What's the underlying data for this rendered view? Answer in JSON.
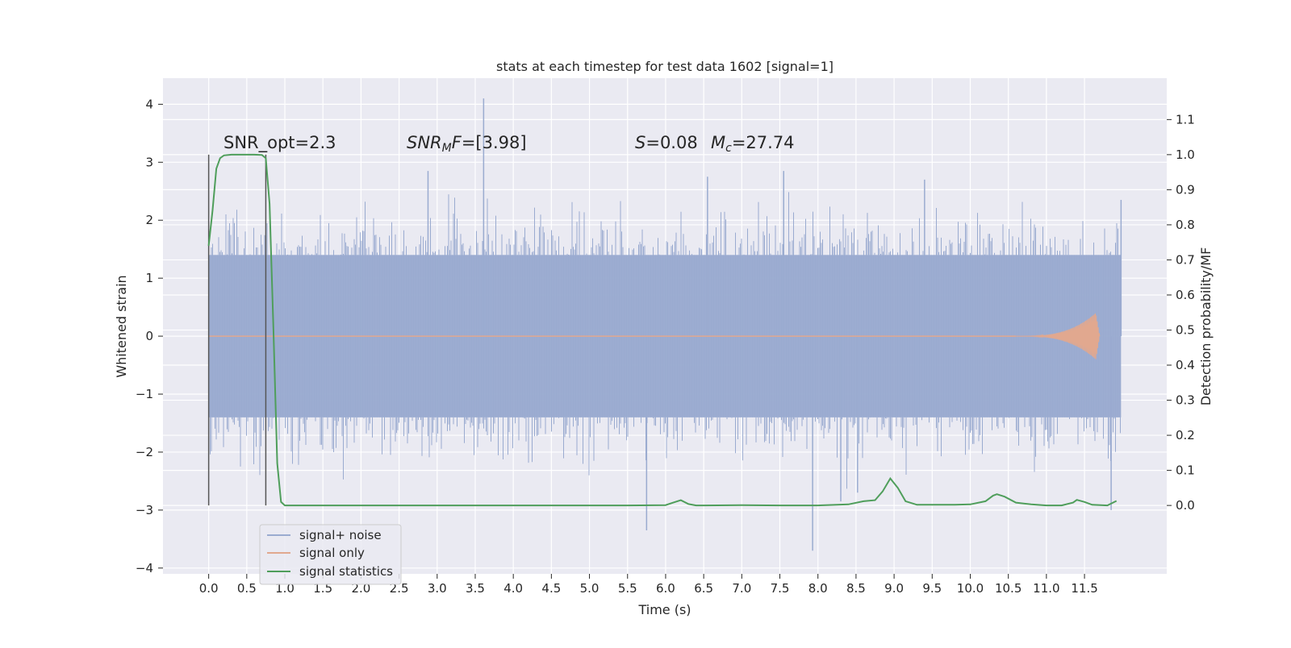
{
  "chart_data": {
    "type": "line",
    "title": "stats at each timestep for test data 1602 [signal=1]",
    "xlabel": "Time (s)",
    "ylabel_left": "Whitened strain",
    "ylabel_right": "Detection probability/MF",
    "xlim": [
      -0.6,
      12.58
    ],
    "ylim_left": [
      -4.1,
      4.45
    ],
    "ylim_right": [
      -0.195,
      1.218
    ],
    "x_ticks": [
      0.0,
      0.5,
      1.0,
      1.5,
      2.0,
      2.5,
      3.0,
      3.5,
      4.0,
      4.5,
      5.0,
      5.5,
      6.0,
      6.5,
      7.0,
      7.5,
      8.0,
      8.5,
      9.0,
      9.5,
      10.0,
      10.5,
      11.0,
      11.5
    ],
    "x_tick_labels": [
      "0.0",
      "0.5",
      "1.0",
      "1.5",
      "2.0",
      "2.5",
      "3.0",
      "3.5",
      "4.0",
      "4.5",
      "5.0",
      "5.5",
      "6.0",
      "6.5",
      "7.0",
      "7.5",
      "8.0",
      "8.5",
      "9.0",
      "9.5",
      "10.0",
      "10.5",
      "11.0",
      "11.5"
    ],
    "y_left_ticks": [
      -4,
      -3,
      -2,
      -1,
      0,
      1,
      2,
      3,
      4
    ],
    "y_left_tick_labels": [
      "−4",
      "−3",
      "−2",
      "−1",
      "0",
      "1",
      "2",
      "3",
      "4"
    ],
    "y_right_ticks": [
      0.0,
      0.1,
      0.2,
      0.3,
      0.4,
      0.5,
      0.6,
      0.7,
      0.8,
      0.9,
      1.0,
      1.1
    ],
    "y_right_tick_labels": [
      "0.0",
      "0.1",
      "0.2",
      "0.3",
      "0.4",
      "0.5",
      "0.6",
      "0.7",
      "0.8",
      "0.9",
      "1.0",
      "1.1"
    ],
    "grid": true,
    "legend_placement": "lower-left",
    "annotations": {
      "snr_opt": "SNR_opt=2.3",
      "snr_mf_prefix": "SNR",
      "snr_mf_sub": "M",
      "snr_mf_suffix": "F",
      "snr_mf_value": "=[3.98]",
      "s_symbol": "S",
      "s_value": "=0.08",
      "mc_symbol": "M",
      "mc_sub": "c",
      "mc_value": "=27.74"
    },
    "vertical_markers": [
      0.0,
      0.75
    ],
    "series": [
      {
        "name": "signal+ noise",
        "axis": "left",
        "color": "#9aabd0",
        "x_range": [
          0.0,
          11.98
        ],
        "amplitude_core": 1.4,
        "peaks": [
          {
            "x": 3.61,
            "y": 4.1
          },
          {
            "x": 2.88,
            "y": 2.85
          },
          {
            "x": 7.55,
            "y": 2.85
          },
          {
            "x": 6.55,
            "y": 2.75
          },
          {
            "x": 9.4,
            "y": 2.7
          },
          {
            "x": 11.98,
            "y": 2.35
          },
          {
            "x": 7.93,
            "y": -3.7
          },
          {
            "x": 5.75,
            "y": -3.35
          },
          {
            "x": 11.85,
            "y": -3.0
          },
          {
            "x": 8.3,
            "y": -2.85
          },
          {
            "x": 8.52,
            "y": -2.7
          }
        ]
      },
      {
        "name": "signal only",
        "axis": "left",
        "color": "#e1a88f",
        "x_range": [
          0.0,
          11.7
        ],
        "chirp_start": 10.6,
        "chirp_peak_x": 11.65,
        "chirp_peak_amplitude": 0.4
      },
      {
        "name": "signal statistics",
        "axis": "right",
        "color": "#4f9e5b",
        "x": [
          0.0,
          0.05,
          0.1,
          0.15,
          0.2,
          0.3,
          0.4,
          0.5,
          0.6,
          0.7,
          0.75,
          0.8,
          0.85,
          0.9,
          0.95,
          1.0,
          1.5,
          2.0,
          3.0,
          4.0,
          5.0,
          5.5,
          6.0,
          6.1,
          6.2,
          6.3,
          6.4,
          6.5,
          7.0,
          7.5,
          8.0,
          8.4,
          8.6,
          8.75,
          8.85,
          8.95,
          9.05,
          9.15,
          9.3,
          9.5,
          9.8,
          10.0,
          10.2,
          10.3,
          10.35,
          10.45,
          10.6,
          10.8,
          11.0,
          11.2,
          11.35,
          11.4,
          11.5,
          11.6,
          11.8,
          11.92
        ],
        "values": [
          0.74,
          0.84,
          0.96,
          0.99,
          0.998,
          1.0,
          1.0,
          1.0,
          1.0,
          0.999,
          0.99,
          0.86,
          0.5,
          0.12,
          0.01,
          0.0,
          0.0,
          0.0,
          0.0,
          0.0,
          0.0,
          0.0,
          0.001,
          0.008,
          0.015,
          0.004,
          0.0,
          0.0,
          0.001,
          0.0,
          0.0,
          0.003,
          0.012,
          0.015,
          0.04,
          0.077,
          0.05,
          0.012,
          0.002,
          0.002,
          0.002,
          0.003,
          0.012,
          0.028,
          0.032,
          0.025,
          0.008,
          0.003,
          0.0,
          0.0,
          0.008,
          0.016,
          0.01,
          0.002,
          0.0,
          0.013
        ]
      }
    ]
  }
}
